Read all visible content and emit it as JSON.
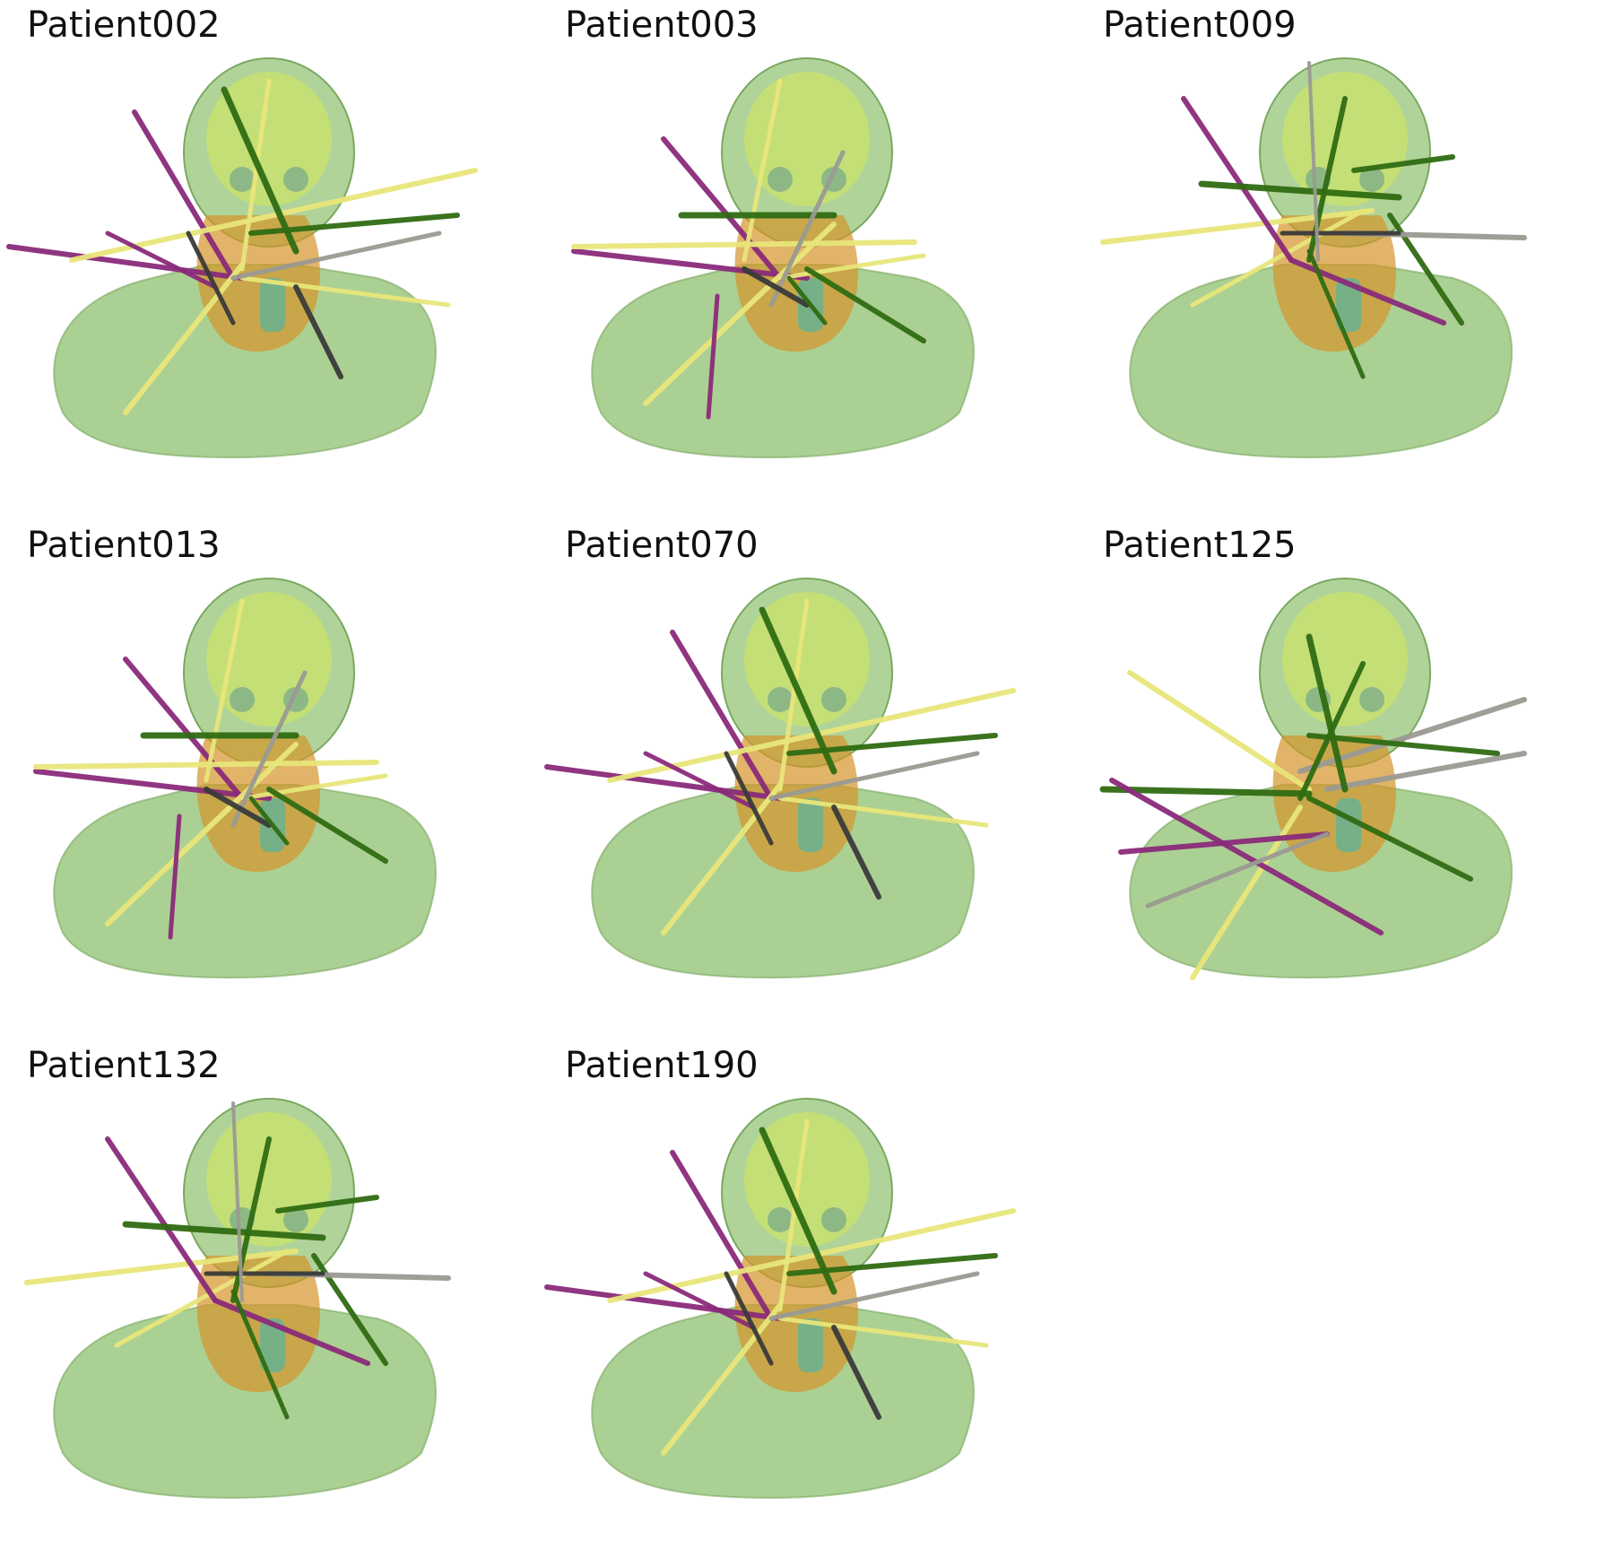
{
  "panels": [
    {
      "title": "Patient002",
      "variant": "a"
    },
    {
      "title": "Patient003",
      "variant": "b"
    },
    {
      "title": "Patient009",
      "variant": "c"
    },
    {
      "title": "Patient013",
      "variant": "b"
    },
    {
      "title": "Patient070",
      "variant": "a"
    },
    {
      "title": "Patient125",
      "variant": "d"
    },
    {
      "title": "Patient132",
      "variant": "c"
    },
    {
      "title": "Patient190",
      "variant": "a"
    }
  ],
  "colors": {
    "body": "#8fc06f",
    "skull": "#c8e070",
    "organ": "#d4942a",
    "cyan": "#3fb7b0",
    "needle_yellow": "#e8e67a",
    "needle_purple": "#8a2a7a",
    "needle_green": "#2f6b12",
    "needle_gray": "#9a9a92",
    "needle_black": "#3a3a3a"
  }
}
